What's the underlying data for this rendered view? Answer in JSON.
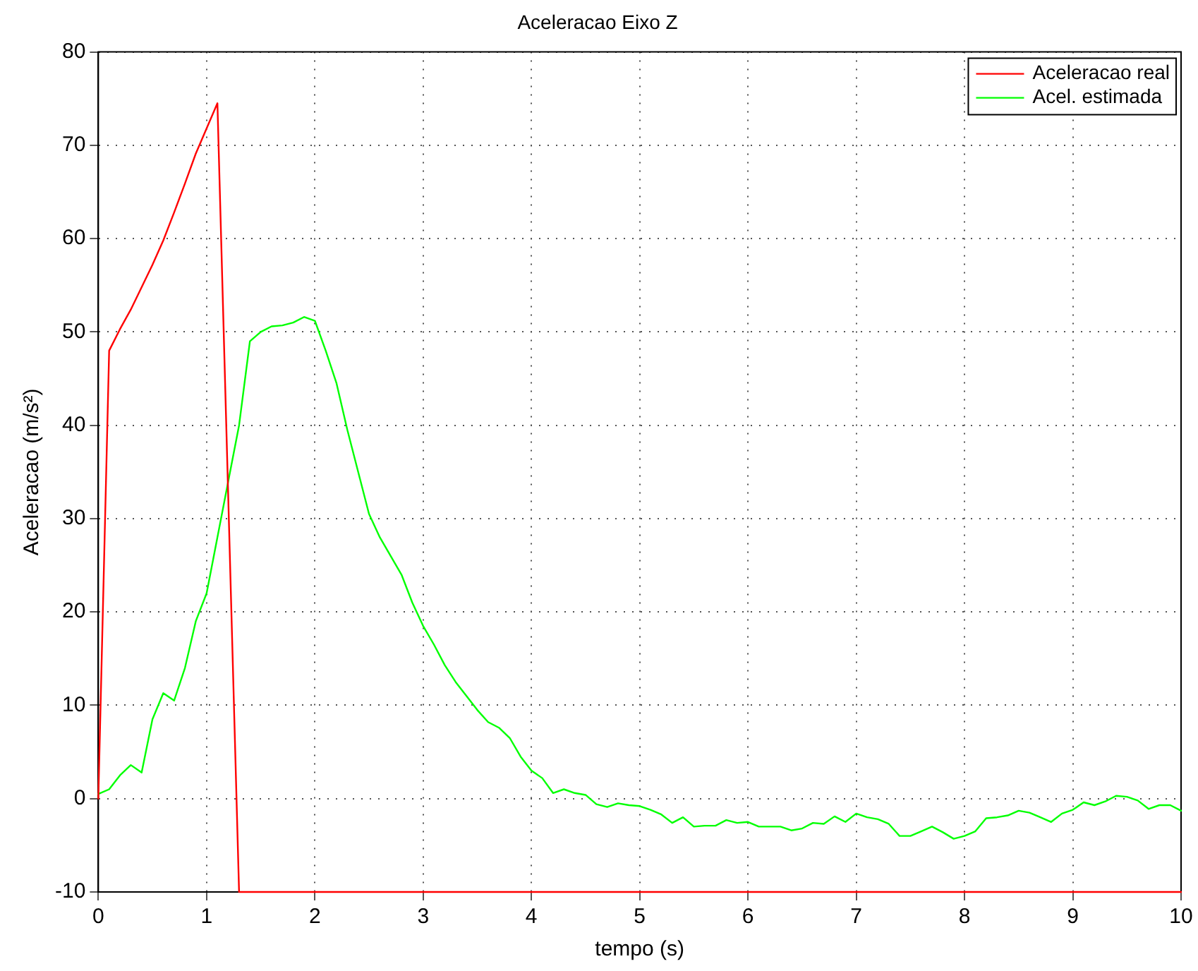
{
  "chart_data": {
    "type": "line",
    "title": "Aceleracao Eixo Z",
    "xlabel": "tempo (s)",
    "ylabel": "Aceleracao (m/s²)",
    "xlim": [
      0,
      10
    ],
    "xticks": [
      0,
      1,
      2,
      3,
      4,
      5,
      6,
      7,
      8,
      9,
      10
    ],
    "ylim": [
      -10,
      80
    ],
    "yticks": [
      -10,
      0,
      10,
      20,
      30,
      40,
      50,
      60,
      70,
      80
    ],
    "grid": true,
    "legend": "top right",
    "marker": "none",
    "line_style": "solid",
    "series": [
      {
        "name": "Aceleracao real",
        "color": "#ff0000",
        "x": [
          0,
          0.1,
          0.2,
          0.3,
          0.4,
          0.5,
          0.6,
          0.7,
          0.8,
          0.9,
          1.0,
          1.1,
          1.3,
          10
        ],
        "values": [
          0,
          48,
          50.3,
          52.4,
          54.8,
          57.2,
          59.8,
          62.8,
          65.9,
          69.1,
          71.8,
          74.5,
          -10,
          -10
        ]
      },
      {
        "name": "Acel. estimada",
        "color": "#00ff00",
        "x": [
          0,
          0.1,
          0.2,
          0.3,
          0.4,
          0.5,
          0.6,
          0.7,
          0.8,
          0.9,
          1.0,
          1.1,
          1.2,
          1.3,
          1.4,
          1.5,
          1.6,
          1.7,
          1.8,
          1.9,
          2.0,
          2.1,
          2.2,
          2.3,
          2.4,
          2.5,
          2.6,
          2.7,
          2.8,
          2.9,
          3.0,
          3.1,
          3.2,
          3.3,
          3.4,
          3.5,
          3.6,
          3.7,
          3.8,
          3.9,
          4.0,
          4.1,
          4.2,
          4.3,
          4.4,
          4.5,
          4.6,
          4.7,
          4.8,
          4.9,
          5.0,
          5.1,
          5.2,
          5.3,
          5.4,
          5.5,
          5.6,
          5.7,
          5.8,
          5.9,
          6.0,
          6.1,
          6.2,
          6.3,
          6.4,
          6.5,
          6.6,
          6.7,
          6.8,
          6.9,
          7.0,
          7.1,
          7.2,
          7.3,
          7.4,
          7.5,
          7.6,
          7.7,
          7.8,
          7.9,
          8.0,
          8.1,
          8.2,
          8.3,
          8.4,
          8.5,
          8.6,
          8.7,
          8.8,
          8.9,
          9.0,
          9.1,
          9.2,
          9.3,
          9.4,
          9.5,
          9.6,
          9.7,
          9.8,
          9.9,
          10
        ],
        "values": [
          0.5,
          1,
          2.5,
          3.6,
          2.8,
          8.5,
          11.3,
          10.5,
          14,
          19,
          22,
          28,
          34,
          40,
          49,
          50,
          50.6,
          50.7,
          51,
          51.6,
          51.2,
          48,
          44.5,
          39.5,
          35,
          30.5,
          28,
          26,
          24,
          21,
          18.5,
          16.5,
          14.3,
          12.5,
          11,
          9.5,
          8.2,
          7.6,
          6.5,
          4.5,
          3,
          2.2,
          0.6,
          1,
          0.6,
          0.4,
          -0.6,
          -0.9,
          -0.5,
          -0.7,
          -0.8,
          -1.2,
          -1.7,
          -2.6,
          -2,
          -3,
          -2.9,
          -2.9,
          -2.3,
          -2.6,
          -2.5,
          -3,
          -3,
          -3,
          -3.4,
          -3.2,
          -2.6,
          -2.7,
          -1.9,
          -2.5,
          -1.6,
          -2,
          -2.2,
          -2.7,
          -4,
          -4,
          -3.5,
          -3,
          -3.6,
          -4.3,
          -4,
          -3.5,
          -2.1,
          -2,
          -1.8,
          -1.3,
          -1.5,
          -2,
          -2.5,
          -1.6,
          -1.2,
          -0.4,
          -0.7,
          -0.3,
          0.3,
          0.2,
          -0.2,
          -1.1,
          -0.7,
          -0.7,
          -1.3
        ]
      }
    ]
  }
}
